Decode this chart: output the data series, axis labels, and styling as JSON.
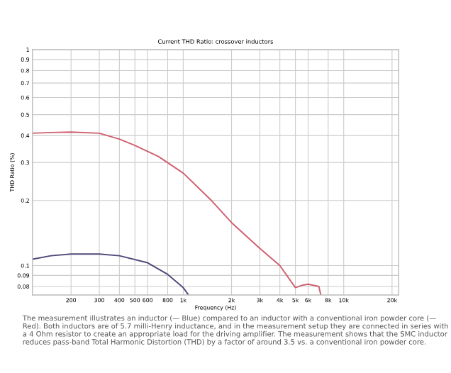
{
  "chart_data": {
    "type": "line",
    "title": "Current THD Ratio: crossover inductors",
    "xlabel": "Frequency (Hz)",
    "ylabel": "THD Ratio (%)",
    "log": "xy",
    "grid": true,
    "marker": "none",
    "line_style": "solid",
    "xlim": [
      115,
      22000
    ],
    "ylim": [
      0.073,
      1
    ],
    "xticks": [
      {
        "value": 200,
        "label": "200"
      },
      {
        "value": 300,
        "label": "300"
      },
      {
        "value": 400,
        "label": "400"
      },
      {
        "value": 500,
        "label": "500"
      },
      {
        "value": 600,
        "label": "600"
      },
      {
        "value": 800,
        "label": "800"
      },
      {
        "value": 1000,
        "label": "1k"
      },
      {
        "value": 2000,
        "label": "2k"
      },
      {
        "value": 3000,
        "label": "3k"
      },
      {
        "value": 4000,
        "label": "4k"
      },
      {
        "value": 5000,
        "label": "5k"
      },
      {
        "value": 6000,
        "label": "6k"
      },
      {
        "value": 8000,
        "label": "8k"
      },
      {
        "value": 10000,
        "label": "10k"
      },
      {
        "value": 20000,
        "label": "20k"
      }
    ],
    "yticks": [
      0.08,
      0.09,
      0.1,
      0.2,
      0.3,
      0.4,
      0.5,
      0.6,
      0.7,
      0.8,
      0.9,
      1
    ],
    "series": [
      {
        "color": "#d06070",
        "x": [
          115,
          150,
          200,
          300,
          400,
          500,
          700,
          1000,
          1500,
          2000,
          3000,
          4000,
          5000,
          5500,
          6000,
          7000,
          7200
        ],
        "values": [
          0.41,
          0.413,
          0.415,
          0.41,
          0.385,
          0.36,
          0.32,
          0.268,
          0.2,
          0.158,
          0.12,
          0.1,
          0.079,
          0.081,
          0.082,
          0.08,
          0.073
        ]
      },
      {
        "color": "#504878",
        "x": [
          115,
          150,
          200,
          300,
          400,
          600,
          800,
          1000,
          1080
        ],
        "values": [
          0.107,
          0.111,
          0.113,
          0.113,
          0.111,
          0.103,
          0.091,
          0.079,
          0.073
        ]
      }
    ],
    "annotations": [
      "The measurement illustrates an inductor (— Blue) compared to an inductor with a conventional iron powder core (— Red). Both inductors are of 5.7 milli-Henry inductance, and in the measurement setup they are connected in series with a 4 Ohm resistor to create an appropriate load for the driving amplifier. The measurement shows that the SMC inductor reduces pass-band Total Harmonic Distortion (THD) by a factor of around 3.5 vs. a conventional iron powder core."
    ]
  }
}
